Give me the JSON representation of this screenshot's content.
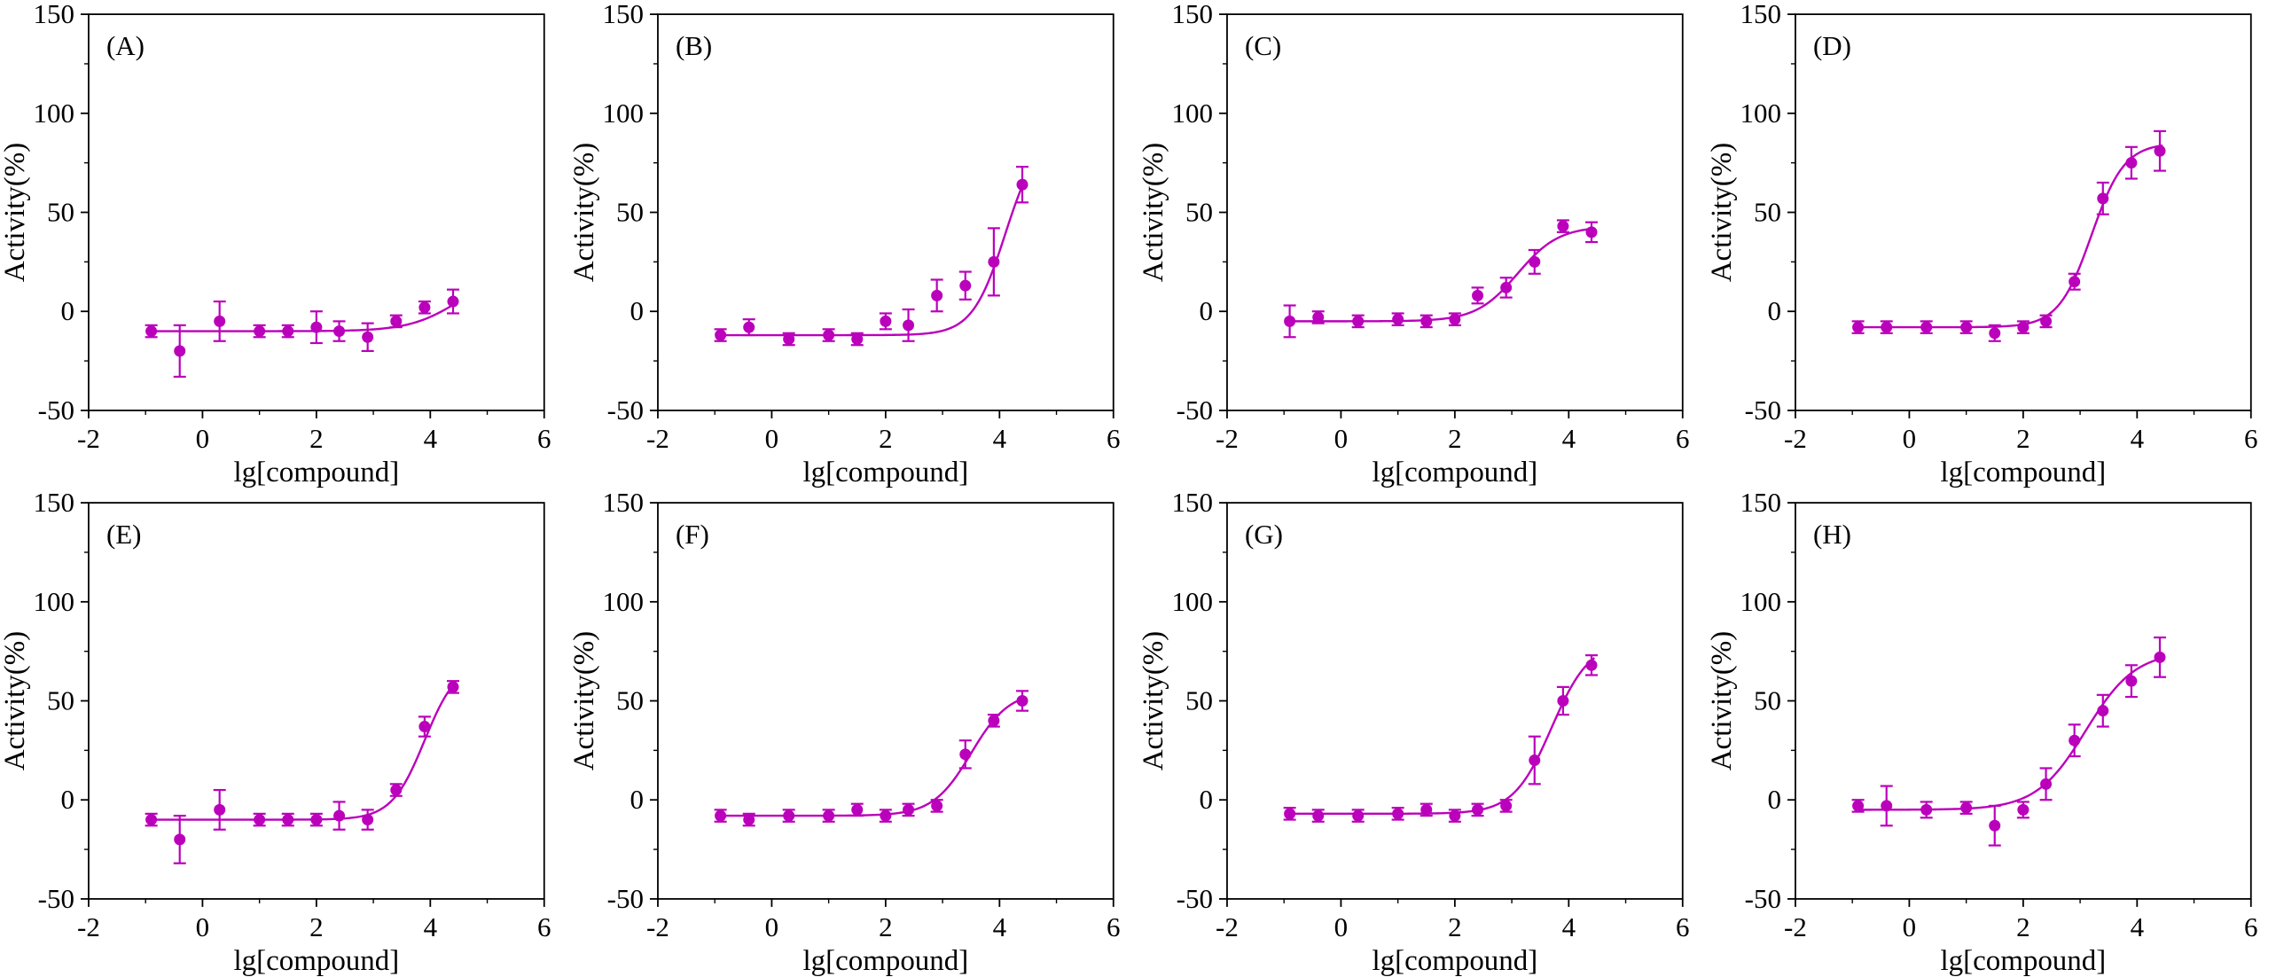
{
  "figure": {
    "background": "#ffffff",
    "series_color": "#bb00bb",
    "axis_color": "#000000",
    "xlabel": "lg[compound]",
    "ylabel": "Activity(%)",
    "xlim": [
      -2,
      6
    ],
    "ylim": [
      -50,
      150
    ],
    "xticks": [
      -2,
      0,
      2,
      4,
      6
    ],
    "yticks": [
      -50,
      0,
      50,
      100,
      150
    ],
    "x_minor_ticks": [
      -1,
      1,
      3,
      5
    ],
    "y_minor_ticks": [
      -25,
      25,
      75,
      125
    ],
    "grid": "off",
    "legend": "none",
    "panels_per_row": 4
  },
  "chart_data": [
    {
      "type": "scatter",
      "panel_label": "(A)",
      "title": "",
      "xlabel": "lg[compound]",
      "ylabel": "Activity(%)",
      "xlim": [
        -2,
        6
      ],
      "ylim": [
        -50,
        150
      ],
      "xticks": [
        -2,
        0,
        2,
        4,
        6
      ],
      "yticks": [
        -50,
        0,
        50,
        100,
        150
      ],
      "x": [
        -0.9,
        -0.4,
        0.3,
        1.0,
        1.5,
        2.0,
        2.4,
        2.9,
        3.4,
        3.9,
        4.4
      ],
      "y": [
        -10,
        -20,
        -5,
        -10,
        -10,
        -8,
        -10,
        -13,
        -5,
        2,
        5
      ],
      "yerr": [
        3,
        13,
        10,
        3,
        3,
        8,
        5,
        7,
        3,
        3,
        6
      ],
      "fit": {
        "bottom": -10,
        "top": 20,
        "logec50": 4.5,
        "slope": 1.0
      }
    },
    {
      "type": "scatter",
      "panel_label": "(B)",
      "title": "",
      "xlabel": "lg[compound]",
      "ylabel": "Activity(%)",
      "xlim": [
        -2,
        6
      ],
      "ylim": [
        -50,
        150
      ],
      "xticks": [
        -2,
        0,
        2,
        4,
        6
      ],
      "yticks": [
        -50,
        0,
        50,
        100,
        150
      ],
      "x": [
        -0.9,
        -0.4,
        0.3,
        1.0,
        1.5,
        2.0,
        2.4,
        2.9,
        3.4,
        3.9,
        4.4
      ],
      "y": [
        -12,
        -8,
        -14,
        -12,
        -14,
        -5,
        -7,
        8,
        13,
        25,
        64
      ],
      "yerr": [
        3,
        4,
        3,
        3,
        3,
        4,
        8,
        8,
        7,
        17,
        9
      ],
      "fit": {
        "bottom": -12,
        "top": 90,
        "logec50": 4.1,
        "slope": 1.5
      }
    },
    {
      "type": "scatter",
      "panel_label": "(C)",
      "title": "",
      "xlabel": "lg[compound]",
      "ylabel": "Activity(%)",
      "xlim": [
        -2,
        6
      ],
      "ylim": [
        -50,
        150
      ],
      "xticks": [
        -2,
        0,
        2,
        4,
        6
      ],
      "yticks": [
        -50,
        0,
        50,
        100,
        150
      ],
      "x": [
        -0.9,
        -0.4,
        0.3,
        1.0,
        1.5,
        2.0,
        2.4,
        2.9,
        3.4,
        3.9,
        4.4
      ],
      "y": [
        -5,
        -3,
        -5,
        -4,
        -5,
        -4,
        8,
        12,
        25,
        43,
        40
      ],
      "yerr": [
        8,
        3,
        3,
        3,
        3,
        3,
        4,
        5,
        6,
        3,
        5
      ],
      "fit": {
        "bottom": -5,
        "top": 43,
        "logec50": 3.1,
        "slope": 1.2
      }
    },
    {
      "type": "scatter",
      "panel_label": "(D)",
      "title": "",
      "xlabel": "lg[compound]",
      "ylabel": "Activity(%)",
      "xlim": [
        -2,
        6
      ],
      "ylim": [
        -50,
        150
      ],
      "xticks": [
        -2,
        0,
        2,
        4,
        6
      ],
      "yticks": [
        -50,
        0,
        50,
        100,
        150
      ],
      "x": [
        -0.9,
        -0.4,
        0.3,
        1.0,
        1.5,
        2.0,
        2.4,
        2.9,
        3.4,
        3.9,
        4.4
      ],
      "y": [
        -8,
        -8,
        -8,
        -8,
        -11,
        -8,
        -5,
        15,
        57,
        75,
        81
      ],
      "yerr": [
        3,
        3,
        3,
        3,
        4,
        3,
        3,
        4,
        8,
        8,
        10
      ],
      "fit": {
        "bottom": -8,
        "top": 85,
        "logec50": 3.2,
        "slope": 1.5
      }
    },
    {
      "type": "scatter",
      "panel_label": "(E)",
      "title": "",
      "xlabel": "lg[compound]",
      "ylabel": "Activity(%)",
      "xlim": [
        -2,
        6
      ],
      "ylim": [
        -50,
        150
      ],
      "xticks": [
        -2,
        0,
        2,
        4,
        6
      ],
      "yticks": [
        -50,
        0,
        50,
        100,
        150
      ],
      "x": [
        -0.9,
        -0.4,
        0.3,
        1.0,
        1.5,
        2.0,
        2.4,
        2.9,
        3.4,
        3.9,
        4.4
      ],
      "y": [
        -10,
        -20,
        -5,
        -10,
        -10,
        -10,
        -8,
        -10,
        5,
        37,
        57
      ],
      "yerr": [
        3,
        12,
        10,
        3,
        3,
        3,
        7,
        5,
        3,
        5,
        3
      ],
      "fit": {
        "bottom": -10,
        "top": 70,
        "logec50": 3.9,
        "slope": 1.5
      }
    },
    {
      "type": "scatter",
      "panel_label": "(F)",
      "title": "",
      "xlabel": "lg[compound]",
      "ylabel": "Activity(%)",
      "xlim": [
        -2,
        6
      ],
      "ylim": [
        -50,
        150
      ],
      "xticks": [
        -2,
        0,
        2,
        4,
        6
      ],
      "yticks": [
        -50,
        0,
        50,
        100,
        150
      ],
      "x": [
        -0.9,
        -0.4,
        0.3,
        1.0,
        1.5,
        2.0,
        2.4,
        2.9,
        3.4,
        3.9,
        4.4
      ],
      "y": [
        -8,
        -10,
        -8,
        -8,
        -5,
        -8,
        -5,
        -3,
        23,
        40,
        50
      ],
      "yerr": [
        3,
        3,
        3,
        3,
        3,
        3,
        3,
        3,
        7,
        3,
        5
      ],
      "fit": {
        "bottom": -8,
        "top": 55,
        "logec50": 3.5,
        "slope": 1.3
      }
    },
    {
      "type": "scatter",
      "panel_label": "(G)",
      "title": "",
      "xlabel": "lg[compound]",
      "ylabel": "Activity(%)",
      "xlim": [
        -2,
        6
      ],
      "ylim": [
        -50,
        150
      ],
      "xticks": [
        -2,
        0,
        2,
        4,
        6
      ],
      "yticks": [
        -50,
        0,
        50,
        100,
        150
      ],
      "x": [
        -0.9,
        -0.4,
        0.3,
        1.0,
        1.5,
        2.0,
        2.4,
        2.9,
        3.4,
        3.9,
        4.4
      ],
      "y": [
        -7,
        -8,
        -8,
        -7,
        -5,
        -8,
        -5,
        -3,
        20,
        50,
        68
      ],
      "yerr": [
        3,
        3,
        3,
        3,
        3,
        3,
        3,
        3,
        12,
        7,
        5
      ],
      "fit": {
        "bottom": -7,
        "top": 80,
        "logec50": 3.7,
        "slope": 1.3
      }
    },
    {
      "type": "scatter",
      "panel_label": "(H)",
      "title": "",
      "xlabel": "lg[compound]",
      "ylabel": "Activity(%)",
      "xlim": [
        -2,
        6
      ],
      "ylim": [
        -50,
        150
      ],
      "xticks": [
        -2,
        0,
        2,
        4,
        6
      ],
      "yticks": [
        -50,
        0,
        50,
        100,
        150
      ],
      "x": [
        -0.9,
        -0.4,
        0.3,
        1.0,
        1.5,
        2.0,
        2.4,
        2.9,
        3.4,
        3.9,
        4.4
      ],
      "y": [
        -3,
        -3,
        -5,
        -4,
        -13,
        -5,
        8,
        30,
        45,
        60,
        72
      ],
      "yerr": [
        3,
        10,
        4,
        3,
        10,
        4,
        8,
        8,
        8,
        8,
        10
      ],
      "fit": {
        "bottom": -5,
        "top": 75,
        "logec50": 3.1,
        "slope": 1.0
      }
    }
  ]
}
